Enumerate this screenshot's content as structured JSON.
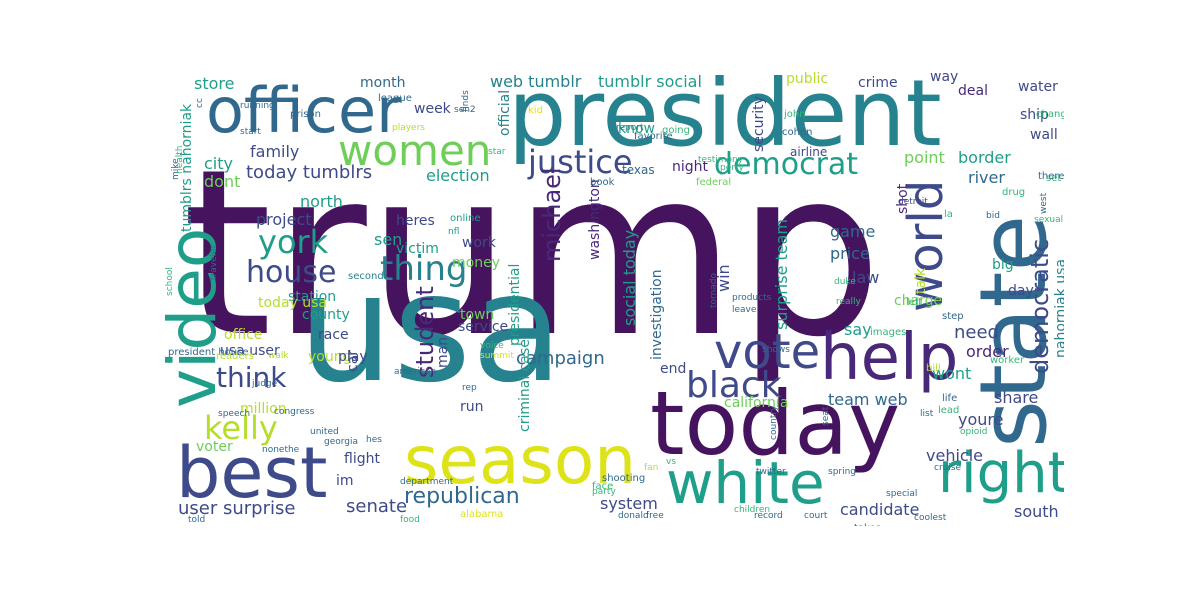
{
  "palette": {
    "purple": "#46145f",
    "violet": "#482878",
    "indigo": "#3e4a89",
    "blue": "#31688e",
    "teal": "#26828e",
    "aqua": "#1f9e89",
    "green": "#35b779",
    "lime": "#6ece58",
    "yellowgreen": "#b5de2b",
    "yellow": "#dde318"
  },
  "words": [
    "trump",
    "usa",
    "president",
    "officer",
    "state",
    "today",
    "season",
    "best",
    "white",
    "video",
    "help",
    "vote",
    "right",
    "world",
    "women",
    "house",
    "justice",
    "democrat",
    "york",
    "thing",
    "kelly",
    "black",
    "think",
    "republican",
    "democratic",
    "student",
    "michael",
    "today tumblrs",
    "user surprise",
    "senate",
    "web tumblr",
    "tumblr social",
    "system",
    "campaign",
    "surprise team",
    "social today",
    "team web",
    "investigation",
    "criminal case",
    "california",
    "border",
    "river",
    "point",
    "game",
    "price",
    "law",
    "charge",
    "big",
    "need",
    "say",
    "order",
    "share",
    "youre",
    "vehicle",
    "wont",
    "day",
    "candidate",
    "south",
    "north",
    "project",
    "sen",
    "victim",
    "money",
    "work",
    "heres",
    "win",
    "washington",
    "presidential",
    "election",
    "family",
    "city",
    "dont",
    "store",
    "month",
    "week",
    "crime",
    "way",
    "deal",
    "water",
    "ship",
    "wall",
    "security",
    "know",
    "night",
    "shot",
    "talk",
    "office",
    "voter",
    "million",
    "young",
    "county",
    "race",
    "play",
    "run",
    "car",
    "flight",
    "im",
    "man",
    "town",
    "service",
    "station",
    "usa user",
    "today usa",
    "tumblrs nahorniak",
    "nahorniak usa",
    "end",
    "public",
    "official",
    "kid",
    "prison",
    "league",
    "texas",
    "star",
    "online",
    "nfl",
    "book",
    "federal",
    "airline",
    "detroit",
    "drug",
    "la",
    "bid",
    "sexual",
    "set",
    "west",
    "change",
    "theres",
    "step",
    "left",
    "images",
    "worker",
    "bill",
    "life",
    "lead",
    "john",
    "cohen",
    "perry",
    "testimony",
    "going",
    "favorite",
    "report",
    "finds",
    "start",
    "running",
    "mike",
    "second",
    "players",
    "health",
    "school",
    "president house",
    "traveler",
    "readers",
    "walk",
    "judge",
    "speech",
    "congress",
    "georgia",
    "hes",
    "nonethe",
    "united",
    "told",
    "food",
    "department",
    "alabama",
    "amazon",
    "party",
    "face",
    "shooting",
    "summit",
    "voice",
    "american",
    "rep",
    "products",
    "leave",
    "tornado",
    "really",
    "duke",
    "shows",
    "free",
    "children",
    "donald",
    "fan",
    "vs",
    "country",
    "seat",
    "twitter",
    "spring",
    "record",
    "court",
    "takes",
    "coolest",
    "medical",
    "opioid",
    "list",
    "special",
    "cruise",
    "cc",
    "sen2"
  ]
}
